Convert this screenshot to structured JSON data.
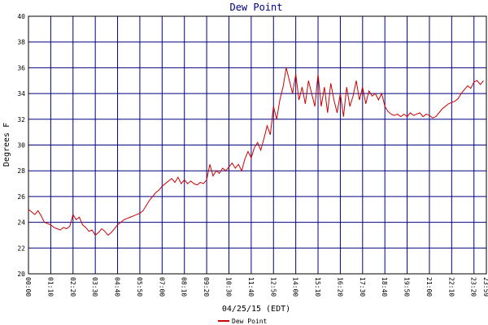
{
  "chart_data": {
    "type": "line",
    "title": "Dew Point",
    "x_label": "04/25/15 (EDT)",
    "y_label": "Degrees F",
    "x": [
      0,
      10,
      20,
      30,
      40,
      50,
      60,
      70,
      80,
      90,
      100,
      110,
      120,
      130,
      140,
      150,
      160,
      170,
      180,
      190,
      200,
      210,
      220,
      230,
      240,
      250,
      260,
      270,
      280,
      290,
      300,
      310,
      320,
      330,
      340,
      350,
      360,
      370,
      380,
      390,
      400,
      410,
      420,
      430,
      440,
      450,
      460,
      470,
      480,
      490,
      500,
      510,
      520,
      530,
      540,
      550,
      560,
      570,
      580,
      590,
      600,
      610,
      620,
      630,
      640,
      650,
      660,
      670,
      680,
      690,
      700,
      710,
      720,
      730,
      740,
      750,
      760,
      770,
      780,
      790,
      800,
      810,
      820,
      830,
      840,
      850,
      860,
      870,
      880,
      890,
      900,
      910,
      920,
      930,
      940,
      950,
      960,
      970,
      980,
      990,
      1000,
      1010,
      1020,
      1030,
      1040,
      1050,
      1060,
      1070,
      1080,
      1090,
      1100,
      1110,
      1120,
      1130,
      1140,
      1150,
      1160,
      1170,
      1180,
      1190,
      1200,
      1210,
      1220,
      1230,
      1240,
      1250,
      1260,
      1270,
      1280,
      1290,
      1300,
      1310,
      1320,
      1330,
      1340,
      1350,
      1360,
      1370,
      1380,
      1390,
      1400,
      1410,
      1420,
      1430
    ],
    "series": [
      {
        "name": "Dew Point",
        "color": "#cc0000",
        "values": [
          25,
          24.8,
          24.6,
          24.9,
          24.5,
          24.0,
          23.9,
          23.8,
          23.6,
          23.5,
          23.4,
          23.6,
          23.5,
          23.7,
          24.6,
          24.2,
          24.4,
          23.8,
          23.6,
          23.3,
          23.4,
          23.0,
          23.2,
          23.5,
          23.3,
          23.0,
          23.2,
          23.5,
          23.8,
          24.0,
          24.2,
          24.3,
          24.4,
          24.5,
          24.6,
          24.7,
          24.9,
          25.3,
          25.7,
          26.0,
          26.3,
          26.5,
          26.8,
          27.0,
          27.2,
          27.4,
          27.1,
          27.5,
          27.0,
          27.3,
          27.0,
          27.2,
          27.0,
          26.9,
          27.1,
          27.0,
          27.3,
          28.5,
          27.6,
          28.0,
          27.8,
          28.2,
          28.0,
          28.3,
          28.6,
          28.2,
          28.5,
          28.0,
          28.9,
          29.5,
          29.0,
          29.8,
          30.2,
          29.6,
          30.5,
          31.5,
          30.8,
          33.0,
          32.0,
          33.5,
          34.5,
          36.0,
          35.0,
          34.0,
          35.5,
          33.5,
          34.5,
          33.2,
          35.0,
          34.0,
          33.0,
          35.5,
          33.0,
          34.5,
          32.5,
          34.8,
          33.5,
          32.5,
          34.0,
          32.2,
          34.5,
          33.0,
          33.8,
          35.0,
          33.5,
          34.5,
          33.2,
          34.2,
          33.8,
          34.0,
          33.5,
          34.0,
          33.0,
          32.6,
          32.4,
          32.3,
          32.4,
          32.2,
          32.4,
          32.2,
          32.5,
          32.3,
          32.4,
          32.5,
          32.2,
          32.4,
          32.3,
          32.1,
          32.2,
          32.5,
          32.8,
          33.0,
          33.2,
          33.3,
          33.4,
          33.6,
          34.0,
          34.3,
          34.6,
          34.4,
          34.9,
          35.0,
          34.7,
          35.0
        ]
      }
    ],
    "xlim": [
      0,
      1439
    ],
    "xticks": [
      {
        "value": 0,
        "label": "00:00"
      },
      {
        "value": 70,
        "label": "01:10"
      },
      {
        "value": 140,
        "label": "02:20"
      },
      {
        "value": 210,
        "label": "03:30"
      },
      {
        "value": 280,
        "label": "04:40"
      },
      {
        "value": 350,
        "label": "05:50"
      },
      {
        "value": 420,
        "label": "07:00"
      },
      {
        "value": 490,
        "label": "08:10"
      },
      {
        "value": 560,
        "label": "09:20"
      },
      {
        "value": 630,
        "label": "10:30"
      },
      {
        "value": 700,
        "label": "11:40"
      },
      {
        "value": 770,
        "label": "12:50"
      },
      {
        "value": 840,
        "label": "14:00"
      },
      {
        "value": 910,
        "label": "15:10"
      },
      {
        "value": 980,
        "label": "16:20"
      },
      {
        "value": 1050,
        "label": "17:30"
      },
      {
        "value": 1120,
        "label": "18:40"
      },
      {
        "value": 1190,
        "label": "19:50"
      },
      {
        "value": 1260,
        "label": "21:00"
      },
      {
        "value": 1330,
        "label": "22:10"
      },
      {
        "value": 1400,
        "label": "23:20"
      },
      {
        "value": 1439,
        "label": "23:59"
      }
    ],
    "ylim": [
      20,
      40
    ],
    "yticks": [
      20,
      22,
      24,
      26,
      28,
      30,
      32,
      34,
      36,
      38,
      40
    ],
    "grid": true,
    "grid_color": "#000080"
  }
}
